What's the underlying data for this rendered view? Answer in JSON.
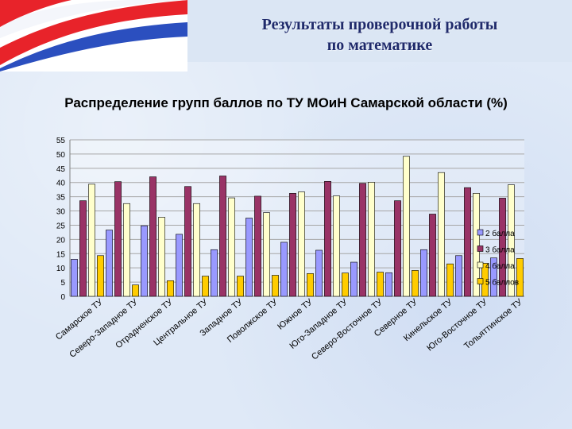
{
  "header": {
    "title_line1": "Результаты проверочной работы",
    "title_line2": "по математике"
  },
  "subtitle": "Распределение групп баллов по ТУ МОиН Самарской области (%)",
  "colors": {
    "series": [
      "#9999ff",
      "#993366",
      "#ffffcc",
      "#ffcc00"
    ],
    "title": "#1f2a6b",
    "flag_red": "#e8232a",
    "flag_blue": "#2b4fbf"
  },
  "chart_data": {
    "type": "bar",
    "categories": [
      "Самарское ТУ",
      "Северо-Западное ТУ",
      "Отрадненское ТУ",
      "Центральное ТУ",
      "Западное ТУ",
      "Поволжское ТУ",
      "Южное ТУ",
      "Юго-Западное ТУ",
      "Северо-Восточное ТУ",
      "Северное ТУ",
      "Кинельское ТУ",
      "Юго-Восточное ТУ",
      "Тольяттинское ТУ"
    ],
    "series": [
      {
        "name": "2 балла",
        "values": [
          13.0,
          23.3,
          24.8,
          21.8,
          16.4,
          27.5,
          19.0,
          16.2,
          12.0,
          8.3,
          16.4,
          14.3,
          13.5
        ]
      },
      {
        "name": "3 балла",
        "values": [
          33.6,
          40.3,
          42.0,
          38.6,
          42.3,
          35.2,
          36.2,
          40.4,
          39.7,
          33.6,
          28.9,
          38.2,
          34.5
        ]
      },
      {
        "name": "4 балла",
        "values": [
          39.4,
          32.6,
          27.8,
          32.6,
          34.6,
          29.4,
          36.7,
          35.3,
          40.1,
          49.2,
          43.5,
          36.2,
          39.2
        ]
      },
      {
        "name": "5 баллов",
        "values": [
          14.3,
          4.0,
          5.5,
          7.1,
          7.1,
          7.4,
          8.0,
          8.2,
          8.5,
          9.1,
          11.4,
          11.6,
          13.3
        ]
      }
    ],
    "ylim": [
      0,
      55
    ],
    "yticks": [
      0,
      5,
      10,
      15,
      20,
      25,
      30,
      35,
      40,
      45,
      50,
      55
    ],
    "grid": true,
    "legend_position": "right"
  }
}
